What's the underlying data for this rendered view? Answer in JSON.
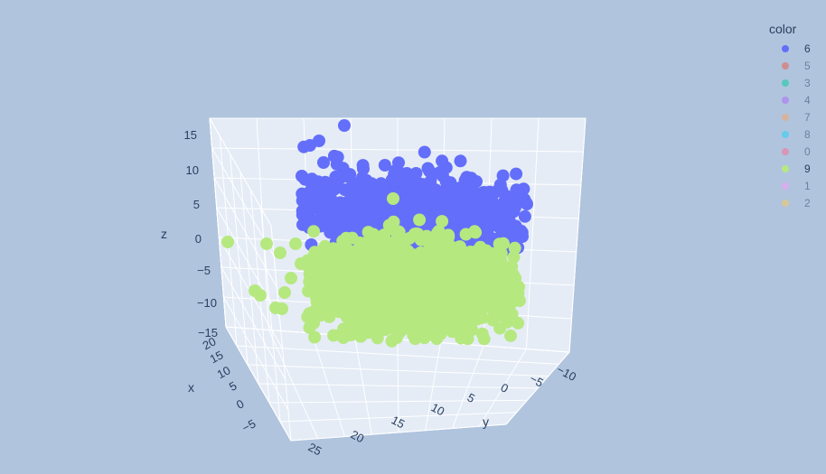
{
  "chart_data": {
    "type": "scatter3d",
    "legend_title": "color",
    "legend_placement": "top-right",
    "series": [
      {
        "name": "6",
        "color": "#636efa",
        "visible": true
      },
      {
        "name": "5",
        "color": "#EF553B",
        "visible": false
      },
      {
        "name": "3",
        "color": "#00cc96",
        "visible": false
      },
      {
        "name": "4",
        "color": "#ab63fa",
        "visible": false
      },
      {
        "name": "7",
        "color": "#FFA15A",
        "visible": false
      },
      {
        "name": "8",
        "color": "#19d3f3",
        "visible": false
      },
      {
        "name": "0",
        "color": "#FF6692",
        "visible": false
      },
      {
        "name": "9",
        "color": "#B6E880",
        "visible": true
      },
      {
        "name": "1",
        "color": "#FF97FF",
        "visible": false
      },
      {
        "name": "2",
        "color": "#FECB52",
        "visible": false
      }
    ],
    "axes": {
      "x": {
        "label": "x",
        "ticks": [
          "20",
          "15",
          "10",
          "5",
          "0",
          "−5"
        ],
        "range": [
          -8,
          22
        ]
      },
      "y": {
        "label": "y",
        "ticks": [
          "25",
          "20",
          "15",
          "10",
          "5",
          "0",
          "−5",
          "−10"
        ],
        "range": [
          -12,
          26
        ]
      },
      "z": {
        "label": "z",
        "ticks": [
          "15",
          "10",
          "5",
          "0",
          "−5",
          "−10",
          "−15"
        ],
        "range": [
          -15,
          17
        ]
      }
    },
    "grid": true
  }
}
